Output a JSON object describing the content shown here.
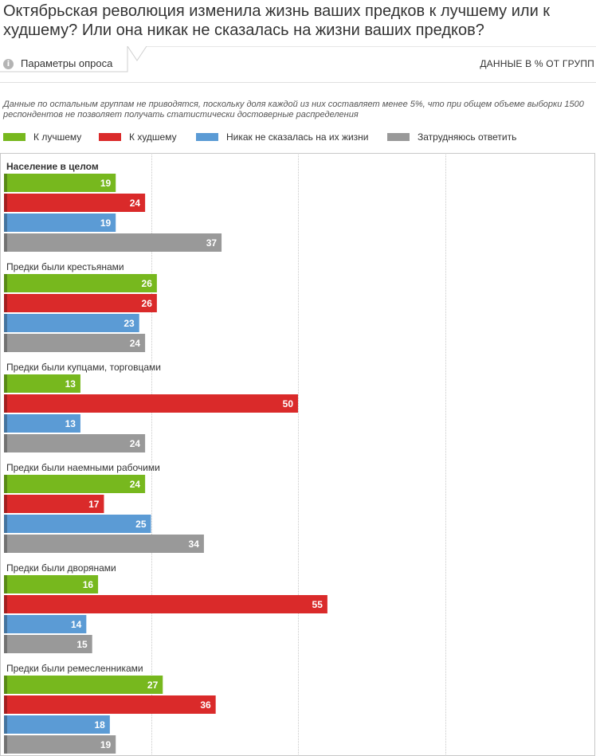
{
  "header": {
    "title": "Октябрьская революция изменила жизнь ваших предков к лучшему или к худшему? Или она никак не сказалась на жизни ваших предков?",
    "params_label": "Параметры опроса",
    "info_icon": "info-icon",
    "units_label": "ДАННЫЕ В % ОТ ГРУПП",
    "note": "Данные по остальным группам не приводятся, поскольку доля каждой из них составляет менее 5%, что при общем объеме выборки 1500 респондентов не позволяет получать статистически достоверные распределения"
  },
  "colors": {
    "better": "#77b81e",
    "worse": "#da2a2a",
    "none": "#5b9bd5",
    "hard": "#999999",
    "grid": "#c8c8c8"
  },
  "chart_data": {
    "type": "bar",
    "orientation": "horizontal",
    "xlim": [
      0,
      100
    ],
    "grid": true,
    "legend_position": "top-left",
    "series": [
      {
        "name": "К лучшему",
        "color": "#77b81e",
        "values": [
          19,
          26,
          13,
          24,
          16,
          27
        ]
      },
      {
        "name": "К худшему",
        "color": "#da2a2a",
        "values": [
          24,
          26,
          50,
          17,
          55,
          36
        ]
      },
      {
        "name": "Никак не сказалась на их жизни",
        "color": "#5b9bd5",
        "values": [
          19,
          23,
          13,
          25,
          14,
          18
        ]
      },
      {
        "name": "Затрудняюсь ответить",
        "color": "#999999",
        "values": [
          37,
          24,
          24,
          34,
          15,
          19
        ]
      }
    ],
    "categories": [
      "Население в целом",
      "Предки были крестьянами",
      "Предки были купцами, торговцами",
      "Предки были наемными рабочими",
      "Предки были дворянами",
      "Предки были ремесленниками"
    ],
    "highlight_category": 0
  }
}
